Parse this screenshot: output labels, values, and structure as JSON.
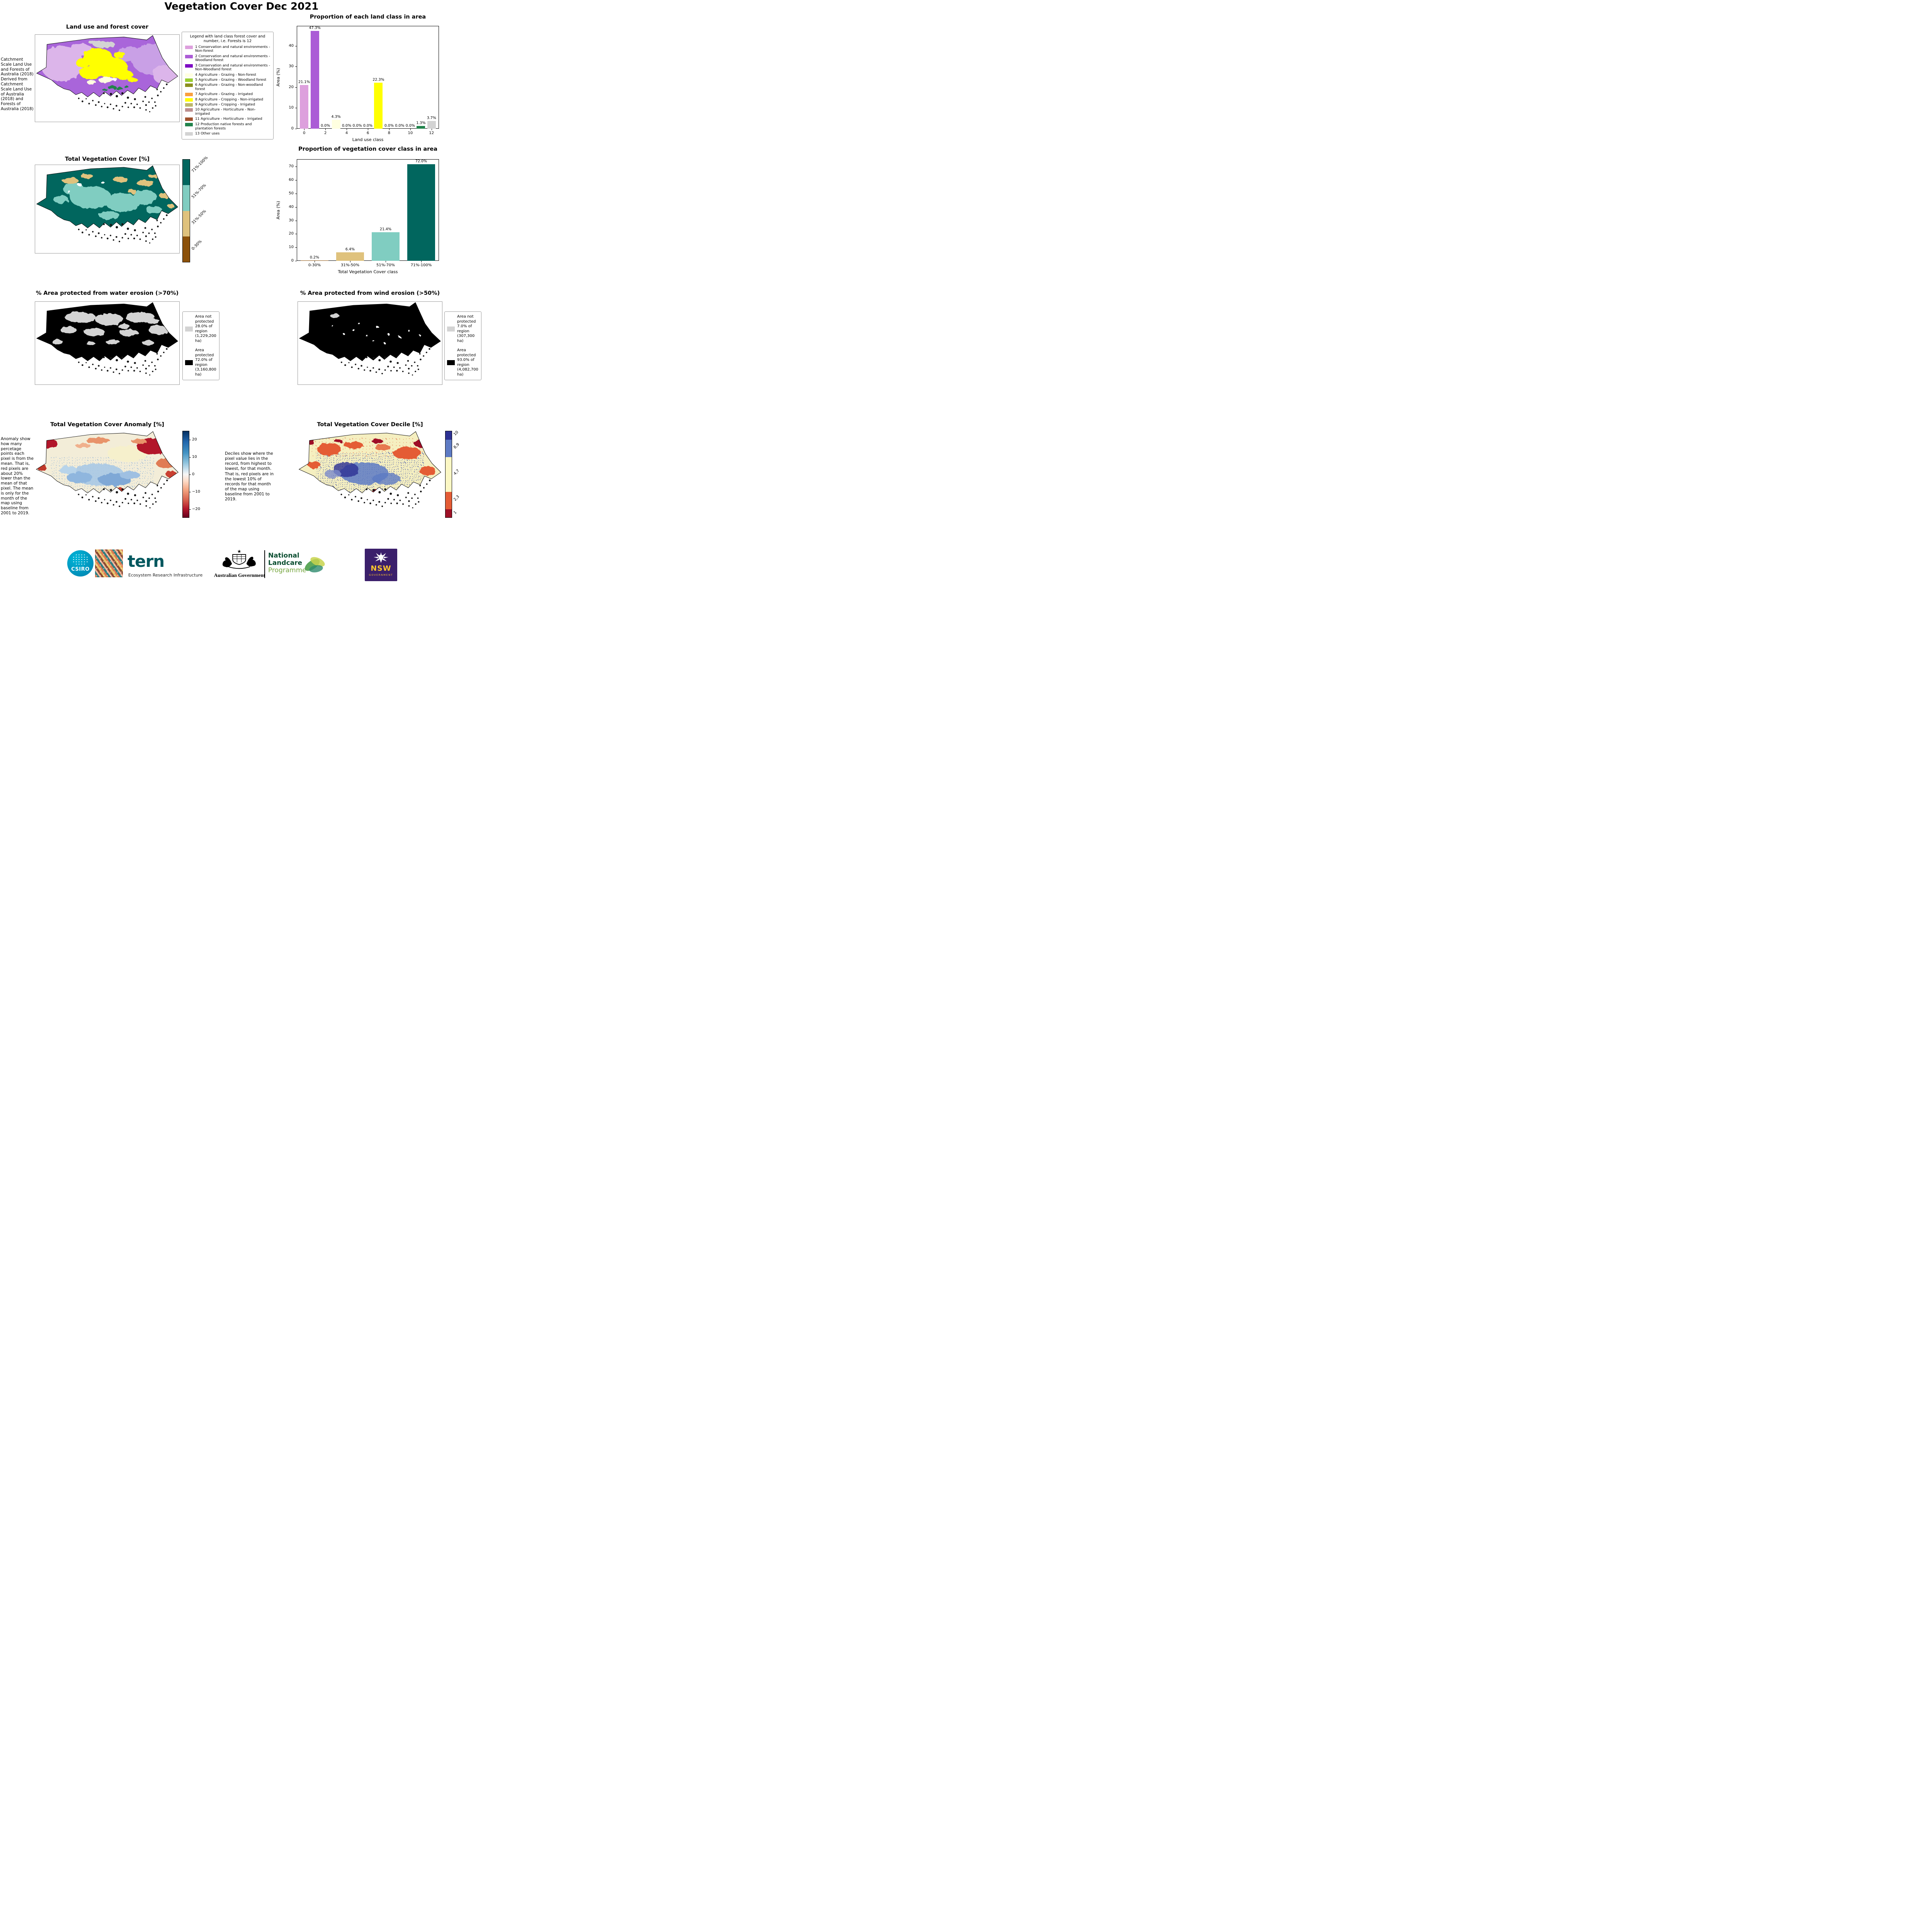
{
  "page_title": "Vegetation Cover Dec 2021",
  "land_use": {
    "title": "Land use and forest cover",
    "source_note": "Catchment Scale Land Use and Forests of Australia (2018) Derived from Catchment Scale Land Use of Australia (2018) and Forests of Australia (2018)",
    "legend_title": "Legend with land class forest cover and number, i.e. Forests is 12",
    "classes": [
      {
        "label": "1 Conservation and natural environments - Non-forest",
        "color": "#DDA0DD"
      },
      {
        "label": "2 Conservation and natural environments - Woodland forest",
        "color": "#AB5CD6"
      },
      {
        "label": "3 Conservation and natural environments - Non-Woodland forest",
        "color": "#7D0DC3"
      },
      {
        "label": "4 Agriculture - Grazing - Non-forest",
        "color": "#FFFFE0"
      },
      {
        "label": "5 Agriculture - Grazing - Woodland forest",
        "color": "#9ACD32"
      },
      {
        "label": "6 Agriculture - Grazing - Non-woodland forest",
        "color": "#8A8F1F"
      },
      {
        "label": "7 Agriculture - Grazing - Irrigated",
        "color": "#F9A03F"
      },
      {
        "label": "8 Agriculture - Cropping - Non-irrigated",
        "color": "#FFFF00"
      },
      {
        "label": "9 Agriculture - Cropping - Irrigated",
        "color": "#BDB76B"
      },
      {
        "label": "10 Agriculture - Horticulture - Non-irrigated",
        "color": "#BC8F8F"
      },
      {
        "label": "11 Agriculture - Horticulture - Irrigated",
        "color": "#A0522D"
      },
      {
        "label": "12 Production native forests and plantation forests",
        "color": "#22834C"
      },
      {
        "label": "13 Other uses",
        "color": "#D3D3D3"
      }
    ]
  },
  "veg_cover": {
    "title": "Total Vegetation Cover [%]",
    "colorbar": [
      {
        "label": "71%-100%",
        "color": "#01665E"
      },
      {
        "label": "51%-70%",
        "color": "#80CDC1"
      },
      {
        "label": "31%-50%",
        "color": "#DFC27D"
      },
      {
        "label": "0-30%",
        "color": "#8C510A"
      }
    ]
  },
  "water_erosion": {
    "title": "% Area protected from water erosion (>70%)",
    "legend": [
      {
        "label": "Area not protected 28.0% of region (1,229,200 ha)",
        "color": "#D3D3D3"
      },
      {
        "label": "Area protected 72.0% of region (3,160,800 ha)",
        "color": "#000000"
      }
    ]
  },
  "wind_erosion": {
    "title": "% Area protected from wind erosion (>50%)",
    "legend": [
      {
        "label": "Area not protected 7.0% of region (307,300 ha)",
        "color": "#D3D3D3"
      },
      {
        "label": "Area protected 93.0% of region (4,082,700 ha)",
        "color": "#000000"
      }
    ]
  },
  "anomaly": {
    "title": "Total Vegetation Cover Anomaly [%]",
    "note": "Anomaly show how many percetage points each pixel is from the mean. That is, red pixels are about 20% lower than the mean of that pixel. The mean is only for the month of the map using baseline from 2001 to 2019.",
    "colorbar_ticks": [
      "20",
      "10",
      "0",
      "−10",
      "−20"
    ],
    "colorbar_range": [
      -25,
      25
    ]
  },
  "decile": {
    "title": "Total Vegetation Cover Decile [%]",
    "note": "Deciles show where the pixel value lies in the record, from highest to lowest, for that month. That is, red pixels are in the lowest 10% of records for that month of the map using baseline from 2001 to 2019.",
    "colorbar": [
      {
        "label": "10",
        "color": "#2D3193",
        "frac": 0.1
      },
      {
        "label": "8,9",
        "color": "#5E7BC4",
        "frac": 0.2
      },
      {
        "label": "4,7",
        "color": "#FBF7C4",
        "frac": 0.4
      },
      {
        "label": "2,3",
        "color": "#E45C35",
        "frac": 0.2
      },
      {
        "label": "1",
        "color": "#9E1126",
        "frac": 0.1
      }
    ]
  },
  "chart_data": [
    {
      "type": "bar",
      "title": "Proportion of each land class in area",
      "xlabel": "Land use class",
      "ylabel": "Area (%)",
      "x": [
        0,
        1,
        2,
        3,
        4,
        5,
        6,
        7,
        8,
        9,
        10,
        11,
        12
      ],
      "values": [
        21.1,
        47.3,
        0.0,
        4.3,
        0.0,
        0.0,
        0.0,
        22.3,
        0.0,
        0.0,
        0.0,
        1.3,
        3.7
      ],
      "labels": [
        "21.1%",
        "47.3%",
        "0.0%",
        "4.3%",
        "0.0%",
        "0.0%",
        "0.0%",
        "22.3%",
        "0.0%",
        "0.0%",
        "0.0%",
        "1.3%",
        "3.7%"
      ],
      "bar_colors": [
        "#DDA0DD",
        "#AB5CD6",
        "#7D0DC3",
        "#FFFFE0",
        "#9ACD32",
        "#8A8F1F",
        "#F9A03F",
        "#FFFF00",
        "#BDB76B",
        "#BC8F8F",
        "#A0522D",
        "#22834C",
        "#D3D3D3"
      ],
      "xlim": [
        -0.7,
        12.7
      ],
      "ylim": [
        0,
        49.7
      ],
      "yticks": [
        0,
        10,
        20,
        30,
        40
      ],
      "xticks": [
        0,
        2,
        4,
        6,
        8,
        10,
        12
      ],
      "grid": false,
      "legend_position": "none"
    },
    {
      "type": "bar",
      "title": "Proportion of vegetation cover class in area",
      "xlabel": "Total Vegetation Cover class",
      "ylabel": "Area (%)",
      "categories": [
        "0-30%",
        "31%-50%",
        "51%-70%",
        "71%-100%"
      ],
      "values": [
        0.2,
        6.4,
        21.4,
        72.0
      ],
      "labels": [
        "0.2%",
        "6.4%",
        "21.4%",
        "72.0%"
      ],
      "bar_colors": [
        "#8C510A",
        "#DFC27D",
        "#80CDC1",
        "#01665E"
      ],
      "ylim": [
        0,
        75.6
      ],
      "yticks": [
        0,
        10,
        20,
        30,
        40,
        50,
        60,
        70
      ],
      "grid": false,
      "legend_position": "none"
    }
  ],
  "footer": {
    "csiro_label": "CSIRO",
    "tern_label": "tern",
    "tern_subtitle": "Ecosystem Research Infrastructure",
    "aus_gov_label": "Australian Government",
    "nlp_line1": "National",
    "nlp_line2": "Landcare",
    "nlp_line3": "Programme",
    "nsw_label": "NSW",
    "nsw_subtitle": "GOVERNMENT"
  }
}
